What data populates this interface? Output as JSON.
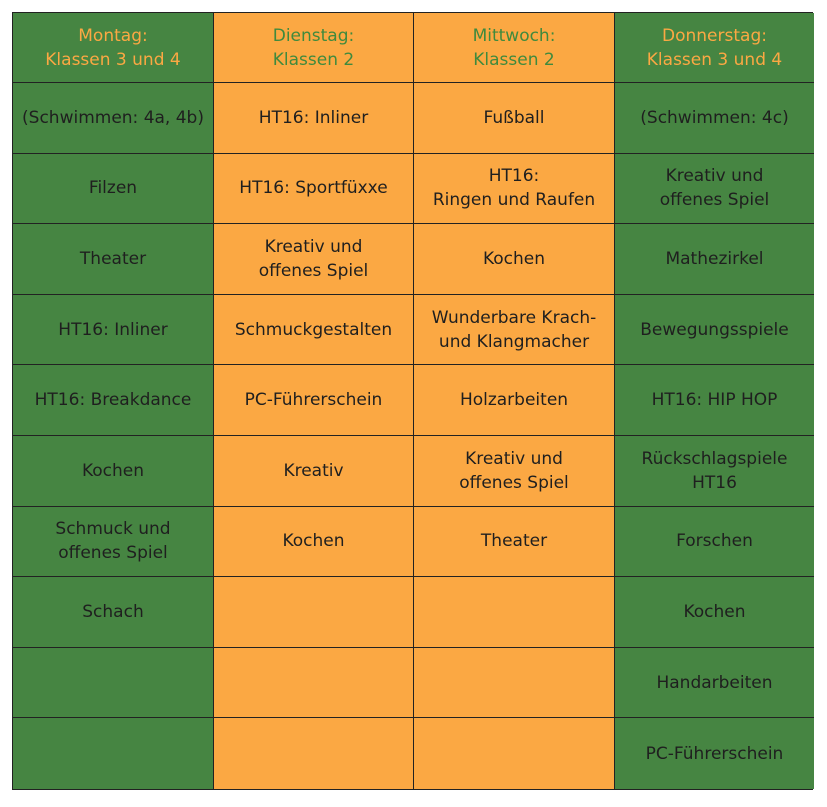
{
  "table": {
    "header": [
      "Montag:\nKlassen 3 und 4",
      "Dienstag:\nKlassen 2",
      "Mittwoch:\nKlassen 2",
      "Donnerstag:\nKlassen 3 und 4"
    ],
    "rows": [
      [
        "(Schwimmen: 4a, 4b)",
        "HT16: Inliner",
        "Fußball",
        "(Schwimmen: 4c)"
      ],
      [
        "Filzen",
        "HT16: Sportfüxxe",
        "HT16:\nRingen und Raufen",
        "Kreativ und\noffenes Spiel"
      ],
      [
        "Theater",
        "Kreativ und\noffenes Spiel",
        "Kochen",
        "Mathezirkel"
      ],
      [
        "HT16: Inliner",
        "Schmuckgestalten",
        "Wunderbare Krach-\nund Klangmacher",
        "Bewegungsspiele"
      ],
      [
        "HT16: Breakdance",
        "PC-Führerschein",
        "Holzarbeiten",
        "HT16: HIP HOP"
      ],
      [
        "Kochen",
        "Kreativ",
        "Kreativ und\noffenes Spiel",
        "Rückschlagspiele\nHT16"
      ],
      [
        "Schmuck und\noffenes Spiel",
        "Kochen",
        "Theater",
        "Forschen"
      ],
      [
        "Schach",
        null,
        null,
        "Kochen"
      ],
      [
        null,
        null,
        null,
        "Handarbeiten"
      ],
      [
        null,
        null,
        null,
        "PC-Führerschein"
      ]
    ]
  }
}
